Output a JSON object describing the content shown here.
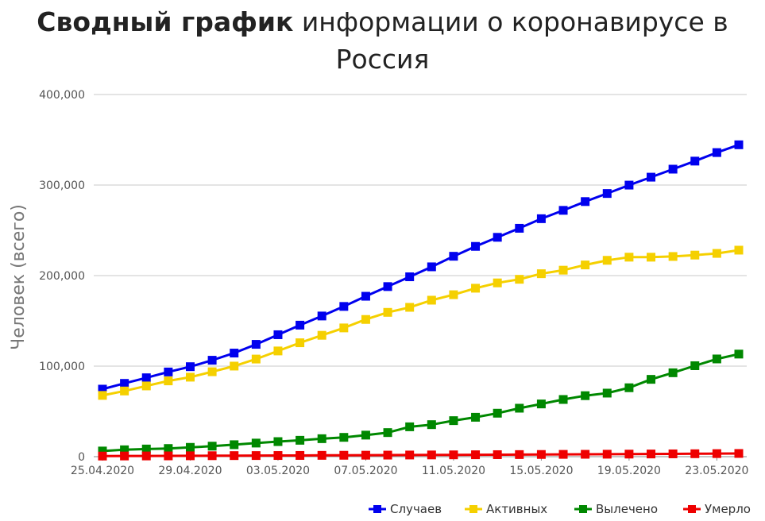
{
  "title": {
    "bold": "Сводный график",
    "rest": " информации о коронавирусе в Россия"
  },
  "chart_data": {
    "type": "line",
    "ylabel": "Человек (всего)",
    "ylim": [
      0,
      400000
    ],
    "y_ticks": [
      "0",
      "100,000",
      "200,000",
      "300,000",
      "400,000"
    ],
    "x_ticks": [
      "25.04.2020",
      "29.04.2020",
      "03.05.2020",
      "07.05.2020",
      "11.05.2020",
      "15.05.2020",
      "19.05.2020",
      "23.05.2020"
    ],
    "x": [
      "25.04.2020",
      "26.04.2020",
      "27.04.2020",
      "28.04.2020",
      "29.04.2020",
      "30.04.2020",
      "01.05.2020",
      "02.05.2020",
      "03.05.2020",
      "04.05.2020",
      "05.05.2020",
      "06.05.2020",
      "07.05.2020",
      "08.05.2020",
      "09.05.2020",
      "10.05.2020",
      "11.05.2020",
      "12.05.2020",
      "13.05.2020",
      "14.05.2020",
      "15.05.2020",
      "16.05.2020",
      "17.05.2020",
      "18.05.2020",
      "19.05.2020",
      "20.05.2020",
      "21.05.2020",
      "22.05.2020",
      "23.05.2020",
      "24.05.2020"
    ],
    "legend_position": "bottom-right",
    "grid": true,
    "series": [
      {
        "name": "Случаев",
        "color": "#0000ee",
        "values": [
          74588,
          80949,
          87147,
          93558,
          99399,
          106498,
          114431,
          124054,
          134686,
          145268,
          155370,
          165929,
          177160,
          187859,
          198676,
          209688,
          221344,
          232243,
          242271,
          252245,
          262843,
          272043,
          281752,
          290678,
          299941,
          308705,
          317554,
          326448,
          335882,
          344481
        ]
      },
      {
        "name": "Активных",
        "color": "#f5d000",
        "values": [
          67657,
          72534,
          78129,
          83700,
          87801,
          93806,
          100042,
          107819,
          116768,
          125817,
          134054,
          142208,
          151546,
          159392,
          164938,
          172831,
          178878,
          186054,
          191945,
          195905,
          202068,
          205990,
          211748,
          216867,
          220341,
          220319,
          221102,
          222636,
          224500,
          228100
        ]
      },
      {
        "name": "Вылечено",
        "color": "#008800",
        "values": [
          6250,
          7615,
          8456,
          9014,
          10286,
          11619,
          13220,
          15013,
          16639,
          18095,
          19865,
          21327,
          23803,
          26608,
          32983,
          35375,
          39801,
          43512,
          48003,
          53530,
          58226,
          63166,
          67373,
          70209,
          76130,
          85392,
          92681,
          100456,
          107936,
          113299
        ]
      },
      {
        "name": "Умерло",
        "color": "#ee0000",
        "values": [
          681,
          747,
          794,
          867,
          972,
          1073,
          1169,
          1222,
          1280,
          1356,
          1451,
          1537,
          1625,
          1723,
          1827,
          1915,
          2009,
          2116,
          2212,
          2305,
          2418,
          2537,
          2631,
          2722,
          2837,
          2972,
          3099,
          3249,
          3388,
          3541
        ]
      }
    ]
  }
}
